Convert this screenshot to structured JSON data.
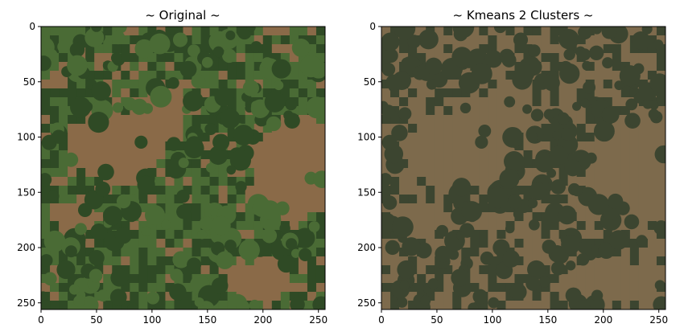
{
  "figure": {
    "panels": [
      {
        "title": "~ Original ~",
        "image_kind": "aerial photo of a plantation with palm trees and brown soil patches"
      },
      {
        "title": "~ Kmeans 2 Clusters ~",
        "image_kind": "2-cluster segmentation map"
      }
    ]
  },
  "colors": {
    "soil": "#8a6a48",
    "vegetation_dark": "#2f4a25",
    "vegetation_mid": "#4a6b35",
    "cluster_soil": "#7d6a4c",
    "cluster_vegetation": "#3c4530"
  },
  "chart_data": [
    {
      "type": "heatmap",
      "title": "~ Original ~",
      "x_ticks": [
        0,
        50,
        100,
        150,
        200,
        250
      ],
      "y_ticks": [
        0,
        50,
        100,
        150,
        200,
        250
      ],
      "xlim": [
        0,
        256
      ],
      "ylim": [
        256,
        0
      ],
      "grid": false
    },
    {
      "type": "heatmap",
      "title": "~ Kmeans 2 Clusters ~",
      "x_ticks": [
        0,
        50,
        100,
        150,
        200,
        250
      ],
      "y_ticks": [
        0,
        50,
        100,
        150,
        200,
        250
      ],
      "xlim": [
        0,
        256
      ],
      "ylim": [
        256,
        0
      ],
      "grid": false,
      "clusters": 2
    }
  ]
}
